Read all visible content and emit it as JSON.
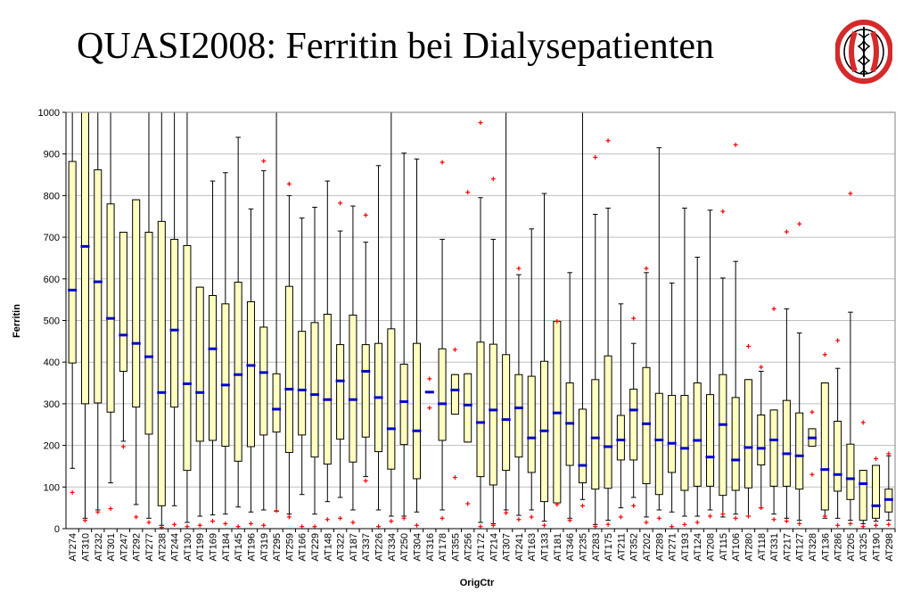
{
  "title": "QUASI2008: Ferritin bei Dialysepatienten",
  "colors": {
    "box_fill": "#FFFFC0",
    "box_stroke": "#000000",
    "median": "#0000CC",
    "outlier": "#FF0000",
    "grid": "#BFBFBF",
    "logo_red": "#D42A2A"
  },
  "logo": {
    "icon": "caduceus-seal-icon"
  },
  "chart_data": {
    "type": "boxplot",
    "title": "",
    "xlabel": "OrigCtr",
    "ylabel": "Ferritin",
    "ylim": [
      0,
      1000
    ],
    "yticks": [
      0,
      100,
      200,
      300,
      400,
      500,
      600,
      700,
      800,
      900,
      1000
    ],
    "grid": true,
    "legend": "none",
    "categories": [
      "AT274",
      "AT310",
      "AT232",
      "AT301",
      "AT247",
      "AT292",
      "AT277",
      "AT238",
      "AT244",
      "AT130",
      "AT199",
      "AT169",
      "AT184",
      "AT145",
      "AT196",
      "AT319",
      "AT295",
      "AT259",
      "AT166",
      "AT229",
      "AT148",
      "AT322",
      "AT187",
      "AT337",
      "AT226",
      "AT334",
      "AT250",
      "AT304",
      "AT316",
      "AT178",
      "AT355",
      "AT256",
      "AT172",
      "AT214",
      "AT307",
      "AT241",
      "AT163",
      "AT133",
      "AT181",
      "AT346",
      "AT235",
      "AT283",
      "AT175",
      "AT211",
      "AT352",
      "AT202",
      "AT289",
      "AT271",
      "AT193",
      "AT124",
      "AT208",
      "AT115",
      "AT106",
      "AT280",
      "AT118",
      "AT331",
      "AT217",
      "AT127",
      "AT328",
      "AT136",
      "AT286",
      "AT205",
      "AT325",
      "AT190",
      "AT298"
    ],
    "boxes": [
      {
        "wmin": 145,
        "q1": 398,
        "med": 573,
        "q3": 882,
        "wmax": 1000,
        "out": [
          87
        ]
      },
      {
        "wmin": 25,
        "q1": 300,
        "med": 678,
        "q3": 1000,
        "wmax": 1000,
        "out": [
          20
        ]
      },
      {
        "wmin": 45,
        "q1": 302,
        "med": 593,
        "q3": 862,
        "wmax": 1000,
        "out": [
          40
        ]
      },
      {
        "wmin": 110,
        "q1": 280,
        "med": 505,
        "q3": 780,
        "wmax": 1000,
        "out": [
          48
        ]
      },
      {
        "wmin": 210,
        "q1": 378,
        "med": 465,
        "q3": 712,
        "wmax": 712,
        "out": [
          197
        ]
      },
      {
        "wmin": 58,
        "q1": 292,
        "med": 445,
        "q3": 790,
        "wmax": 790,
        "out": [
          28
        ]
      },
      {
        "wmin": 25,
        "q1": 227,
        "med": 413,
        "q3": 712,
        "wmax": 1000,
        "out": [
          15
        ]
      },
      {
        "wmin": 8,
        "q1": 55,
        "med": 327,
        "q3": 738,
        "wmax": 1000,
        "out": [
          3
        ]
      },
      {
        "wmin": 55,
        "q1": 292,
        "med": 477,
        "q3": 695,
        "wmax": 1000,
        "out": [
          10
        ]
      },
      {
        "wmin": 15,
        "q1": 140,
        "med": 348,
        "q3": 680,
        "wmax": 1000,
        "out": [
          5
        ]
      },
      {
        "wmin": 30,
        "q1": 210,
        "med": 327,
        "q3": 580,
        "wmax": 580,
        "out": [
          8
        ]
      },
      {
        "wmin": 33,
        "q1": 212,
        "med": 432,
        "q3": 560,
        "wmax": 835,
        "out": [
          18
        ]
      },
      {
        "wmin": 35,
        "q1": 198,
        "med": 345,
        "q3": 540,
        "wmax": 855,
        "out": [
          12
        ]
      },
      {
        "wmin": 52,
        "q1": 162,
        "med": 370,
        "q3": 592,
        "wmax": 940,
        "out": [
          5
        ]
      },
      {
        "wmin": 40,
        "q1": 197,
        "med": 392,
        "q3": 545,
        "wmax": 768,
        "out": [
          12
        ]
      },
      {
        "wmin": 45,
        "q1": 225,
        "med": 375,
        "q3": 484,
        "wmax": 860,
        "out": [
          883,
          8
        ]
      },
      {
        "wmin": 42,
        "q1": 232,
        "med": 287,
        "q3": 372,
        "wmax": 1000,
        "out": [
          43
        ]
      },
      {
        "wmin": 35,
        "q1": 183,
        "med": 335,
        "q3": 582,
        "wmax": 800,
        "out": [
          828,
          28
        ]
      },
      {
        "wmin": 82,
        "q1": 225,
        "med": 333,
        "q3": 474,
        "wmax": 746,
        "out": [
          5
        ]
      },
      {
        "wmin": 35,
        "q1": 172,
        "med": 322,
        "q3": 495,
        "wmax": 772,
        "out": [
          5
        ]
      },
      {
        "wmin": 65,
        "q1": 155,
        "med": 310,
        "q3": 515,
        "wmax": 835,
        "out": [
          22
        ]
      },
      {
        "wmin": 75,
        "q1": 215,
        "med": 355,
        "q3": 442,
        "wmax": 715,
        "out": [
          782,
          25
        ]
      },
      {
        "wmin": 45,
        "q1": 160,
        "med": 310,
        "q3": 513,
        "wmax": 775,
        "out": [
          15
        ]
      },
      {
        "wmin": 125,
        "q1": 220,
        "med": 378,
        "q3": 442,
        "wmax": 688,
        "out": [
          753,
          115
        ]
      },
      {
        "wmin": 45,
        "q1": 185,
        "med": 315,
        "q3": 445,
        "wmax": 872,
        "out": [
          5
        ]
      },
      {
        "wmin": 30,
        "q1": 143,
        "med": 240,
        "q3": 480,
        "wmax": 1000,
        "out": [
          18
        ]
      },
      {
        "wmin": 30,
        "q1": 202,
        "med": 305,
        "q3": 395,
        "wmax": 902,
        "out": [
          25
        ]
      },
      {
        "wmin": 40,
        "q1": 120,
        "med": 235,
        "q3": 445,
        "wmax": 888,
        "out": [
          8
        ]
      },
      {
        "wmin": 328,
        "q1": 328,
        "med": 328,
        "q3": 328,
        "wmax": 328,
        "out": [
          360,
          290
        ]
      },
      {
        "wmin": 45,
        "q1": 212,
        "med": 300,
        "q3": 432,
        "wmax": 695,
        "out": [
          880,
          25
        ]
      },
      {
        "wmin": 275,
        "q1": 275,
        "med": 333,
        "q3": 370,
        "wmax": 370,
        "out": [
          430,
          123
        ]
      },
      {
        "wmin": 208,
        "q1": 208,
        "med": 297,
        "q3": 372,
        "wmax": 372,
        "out": [
          808,
          60
        ]
      },
      {
        "wmin": 15,
        "q1": 125,
        "med": 255,
        "q3": 448,
        "wmax": 795,
        "out": [
          975,
          5
        ]
      },
      {
        "wmin": 12,
        "q1": 105,
        "med": 285,
        "q3": 443,
        "wmax": 695,
        "out": [
          840,
          8
        ]
      },
      {
        "wmin": 45,
        "q1": 140,
        "med": 262,
        "q3": 418,
        "wmax": 1000,
        "out": [
          38
        ]
      },
      {
        "wmin": 32,
        "q1": 172,
        "med": 290,
        "q3": 370,
        "wmax": 610,
        "out": [
          625,
          22
        ]
      },
      {
        "wmin": 45,
        "q1": 135,
        "med": 218,
        "q3": 366,
        "wmax": 720,
        "out": [
          28
        ]
      },
      {
        "wmin": 18,
        "q1": 65,
        "med": 235,
        "q3": 402,
        "wmax": 805,
        "out": [
          8
        ]
      },
      {
        "wmin": 62,
        "q1": 62,
        "med": 278,
        "q3": 498,
        "wmax": 498,
        "out": [
          498,
          58
        ]
      },
      {
        "wmin": 25,
        "q1": 152,
        "med": 253,
        "q3": 350,
        "wmax": 615,
        "out": [
          20
        ]
      },
      {
        "wmin": 70,
        "q1": 110,
        "med": 152,
        "q3": 287,
        "wmax": 1000,
        "out": [
          55
        ]
      },
      {
        "wmin": 10,
        "q1": 95,
        "med": 218,
        "q3": 358,
        "wmax": 755,
        "out": [
          892,
          5
        ]
      },
      {
        "wmin": 20,
        "q1": 97,
        "med": 197,
        "q3": 415,
        "wmax": 770,
        "out": [
          932,
          10
        ]
      },
      {
        "wmin": 50,
        "q1": 165,
        "med": 213,
        "q3": 272,
        "wmax": 540,
        "out": [
          28
        ]
      },
      {
        "wmin": 75,
        "q1": 165,
        "med": 285,
        "q3": 335,
        "wmax": 445,
        "out": [
          505,
          55
        ]
      },
      {
        "wmin": 28,
        "q1": 108,
        "med": 252,
        "q3": 387,
        "wmax": 615,
        "out": [
          625,
          15
        ]
      },
      {
        "wmin": 45,
        "q1": 82,
        "med": 213,
        "q3": 325,
        "wmax": 915,
        "out": [
          25
        ]
      },
      {
        "wmin": 40,
        "q1": 135,
        "med": 205,
        "q3": 320,
        "wmax": 590,
        "out": [
          5
        ]
      },
      {
        "wmin": 30,
        "q1": 92,
        "med": 193,
        "q3": 320,
        "wmax": 770,
        "out": [
          10
        ]
      },
      {
        "wmin": 30,
        "q1": 102,
        "med": 212,
        "q3": 350,
        "wmax": 652,
        "out": [
          15
        ]
      },
      {
        "wmin": 45,
        "q1": 102,
        "med": 172,
        "q3": 322,
        "wmax": 765,
        "out": [
          30
        ]
      },
      {
        "wmin": 28,
        "q1": 80,
        "med": 250,
        "q3": 370,
        "wmax": 602,
        "out": [
          762,
          35
        ]
      },
      {
        "wmin": 35,
        "q1": 92,
        "med": 165,
        "q3": 315,
        "wmax": 642,
        "out": [
          922,
          25
        ]
      },
      {
        "wmin": 30,
        "q1": 98,
        "med": 195,
        "q3": 358,
        "wmax": 358,
        "out": [
          438,
          30
        ]
      },
      {
        "wmin": 50,
        "q1": 153,
        "med": 193,
        "q3": 273,
        "wmax": 378,
        "out": [
          388,
          50
        ]
      },
      {
        "wmin": 35,
        "q1": 102,
        "med": 213,
        "q3": 285,
        "wmax": 285,
        "out": [
          528,
          22
        ]
      },
      {
        "wmin": 25,
        "q1": 102,
        "med": 180,
        "q3": 308,
        "wmax": 528,
        "out": [
          713,
          18
        ]
      },
      {
        "wmin": 20,
        "q1": 95,
        "med": 175,
        "q3": 278,
        "wmax": 470,
        "out": [
          732,
          12
        ]
      },
      {
        "wmin": 198,
        "q1": 198,
        "med": 218,
        "q3": 240,
        "wmax": 240,
        "out": [
          280,
          130
        ]
      },
      {
        "wmin": 25,
        "q1": 45,
        "med": 142,
        "q3": 350,
        "wmax": 350,
        "out": [
          418,
          30
        ]
      },
      {
        "wmin": 25,
        "q1": 90,
        "med": 130,
        "q3": 258,
        "wmax": 385,
        "out": [
          452,
          8
        ]
      },
      {
        "wmin": 20,
        "q1": 70,
        "med": 120,
        "q3": 203,
        "wmax": 520,
        "out": [
          805,
          12
        ]
      },
      {
        "wmin": 12,
        "q1": 20,
        "med": 108,
        "q3": 140,
        "wmax": 140,
        "out": [
          255,
          5
        ]
      },
      {
        "wmin": 18,
        "q1": 25,
        "med": 55,
        "q3": 152,
        "wmax": 152,
        "out": [
          168,
          8
        ]
      },
      {
        "wmin": 20,
        "q1": 40,
        "med": 70,
        "q3": 95,
        "wmax": 175,
        "out": [
          180,
          10
        ]
      }
    ]
  }
}
